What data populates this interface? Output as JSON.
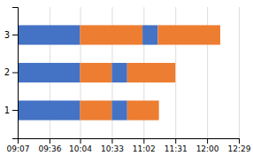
{
  "chart_data": {
    "type": "bar",
    "orientation": "horizontal",
    "grid": true,
    "categories": [
      "1",
      "2",
      "3"
    ],
    "segments": [
      [
        {
          "start": 547,
          "width": 57,
          "color": "#4472c4"
        },
        {
          "start": 604,
          "width": 29,
          "color": "#ed7d31"
        },
        {
          "start": 633,
          "width": 14,
          "color": "#4472c4"
        },
        {
          "start": 647,
          "width": 29,
          "color": "#ed7d31"
        }
      ],
      [
        {
          "start": 547,
          "width": 57,
          "color": "#4472c4"
        },
        {
          "start": 604,
          "width": 29,
          "color": "#ed7d31"
        },
        {
          "start": 633,
          "width": 14,
          "color": "#4472c4"
        },
        {
          "start": 647,
          "width": 44,
          "color": "#ed7d31"
        }
      ],
      [
        {
          "start": 547,
          "width": 57,
          "color": "#4472c4"
        },
        {
          "start": 604,
          "width": 57,
          "color": "#ed7d31"
        },
        {
          "start": 661,
          "width": 14,
          "color": "#4472c4"
        },
        {
          "start": 675,
          "width": 57,
          "color": "#ed7d31"
        }
      ]
    ],
    "xlim": [
      547,
      749
    ],
    "xticks": [
      {
        "value": 547,
        "label": "09:07"
      },
      {
        "value": 576,
        "label": "09:36"
      },
      {
        "value": 604,
        "label": "10:04"
      },
      {
        "value": 633,
        "label": "10:33"
      },
      {
        "value": 662,
        "label": "11:02"
      },
      {
        "value": 691,
        "label": "11:31"
      },
      {
        "value": 720,
        "label": "12:00"
      },
      {
        "value": 749,
        "label": "12:29"
      }
    ]
  }
}
